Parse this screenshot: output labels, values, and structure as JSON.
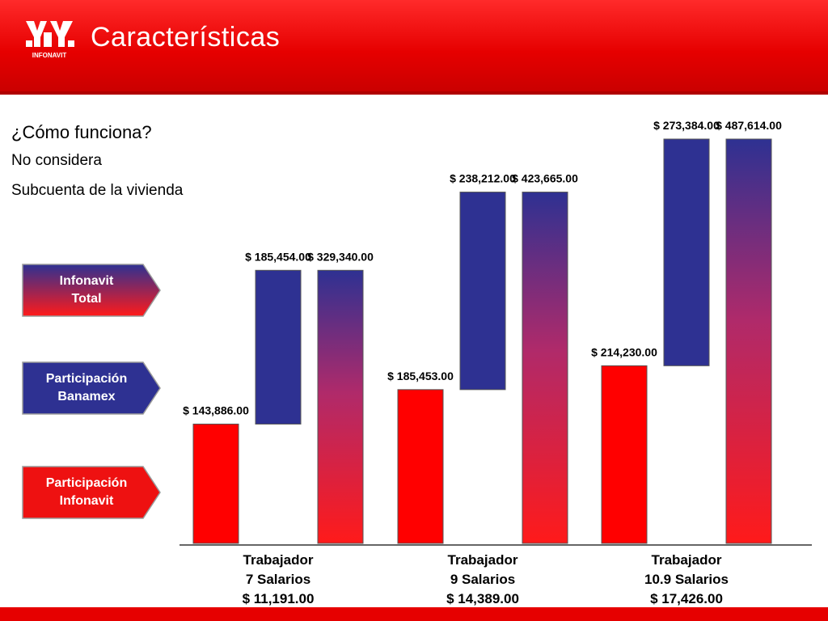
{
  "header": {
    "title": "Características",
    "logo_text": "INFONAVIT",
    "color": "#e60000"
  },
  "intro": {
    "question": "¿Cómo funciona?",
    "line1": "No considera",
    "line2": "Subcuenta de la vivienda"
  },
  "legend": [
    {
      "line1": "Infonavit",
      "line2": "Total",
      "style": "gradient-blue-red"
    },
    {
      "line1": "Participación",
      "line2": "Banamex",
      "color": "#2e3192"
    },
    {
      "line1": "Participación",
      "line2": "Infonavit",
      "color": "#ee1111"
    }
  ],
  "chart_data": {
    "type": "bar",
    "categories": [
      {
        "line1": "Trabajador",
        "line2": "7 Salarios",
        "line3": "$ 11,191.00"
      },
      {
        "line1": "Trabajador",
        "line2": "9 Salarios",
        "line3": "$ 14,389.00"
      },
      {
        "line1": "Trabajador",
        "line2": "10.9 Salarios",
        "line3": "$ 17,426.00"
      }
    ],
    "groups": [
      {
        "infonavit": 143886,
        "banamex": 185454,
        "total": 329340,
        "labels": {
          "infonavit": "$ 143,886.00",
          "banamex": "$ 185,454.00",
          "total": "$ 329,340.00"
        }
      },
      {
        "infonavit": 185453,
        "banamex": 238212,
        "total": 423665,
        "labels": {
          "infonavit": "$ 185,453.00",
          "banamex": "$ 238,212.00",
          "total": "$ 423,665.00"
        }
      },
      {
        "infonavit": 214230,
        "banamex": 273384,
        "total": 487614,
        "labels": {
          "infonavit": "$ 214,230.00",
          "banamex": "$ 273,384.00",
          "total": "$ 487,614.00"
        }
      }
    ],
    "series": [
      {
        "key": "infonavit",
        "color": "#ff0000"
      },
      {
        "key": "banamex",
        "color": "#2e3192"
      },
      {
        "key": "total",
        "gradient": [
          "#2e3192",
          "#ff1a1a"
        ]
      }
    ],
    "ylim": [
      0,
      487614
    ],
    "grid": false
  }
}
